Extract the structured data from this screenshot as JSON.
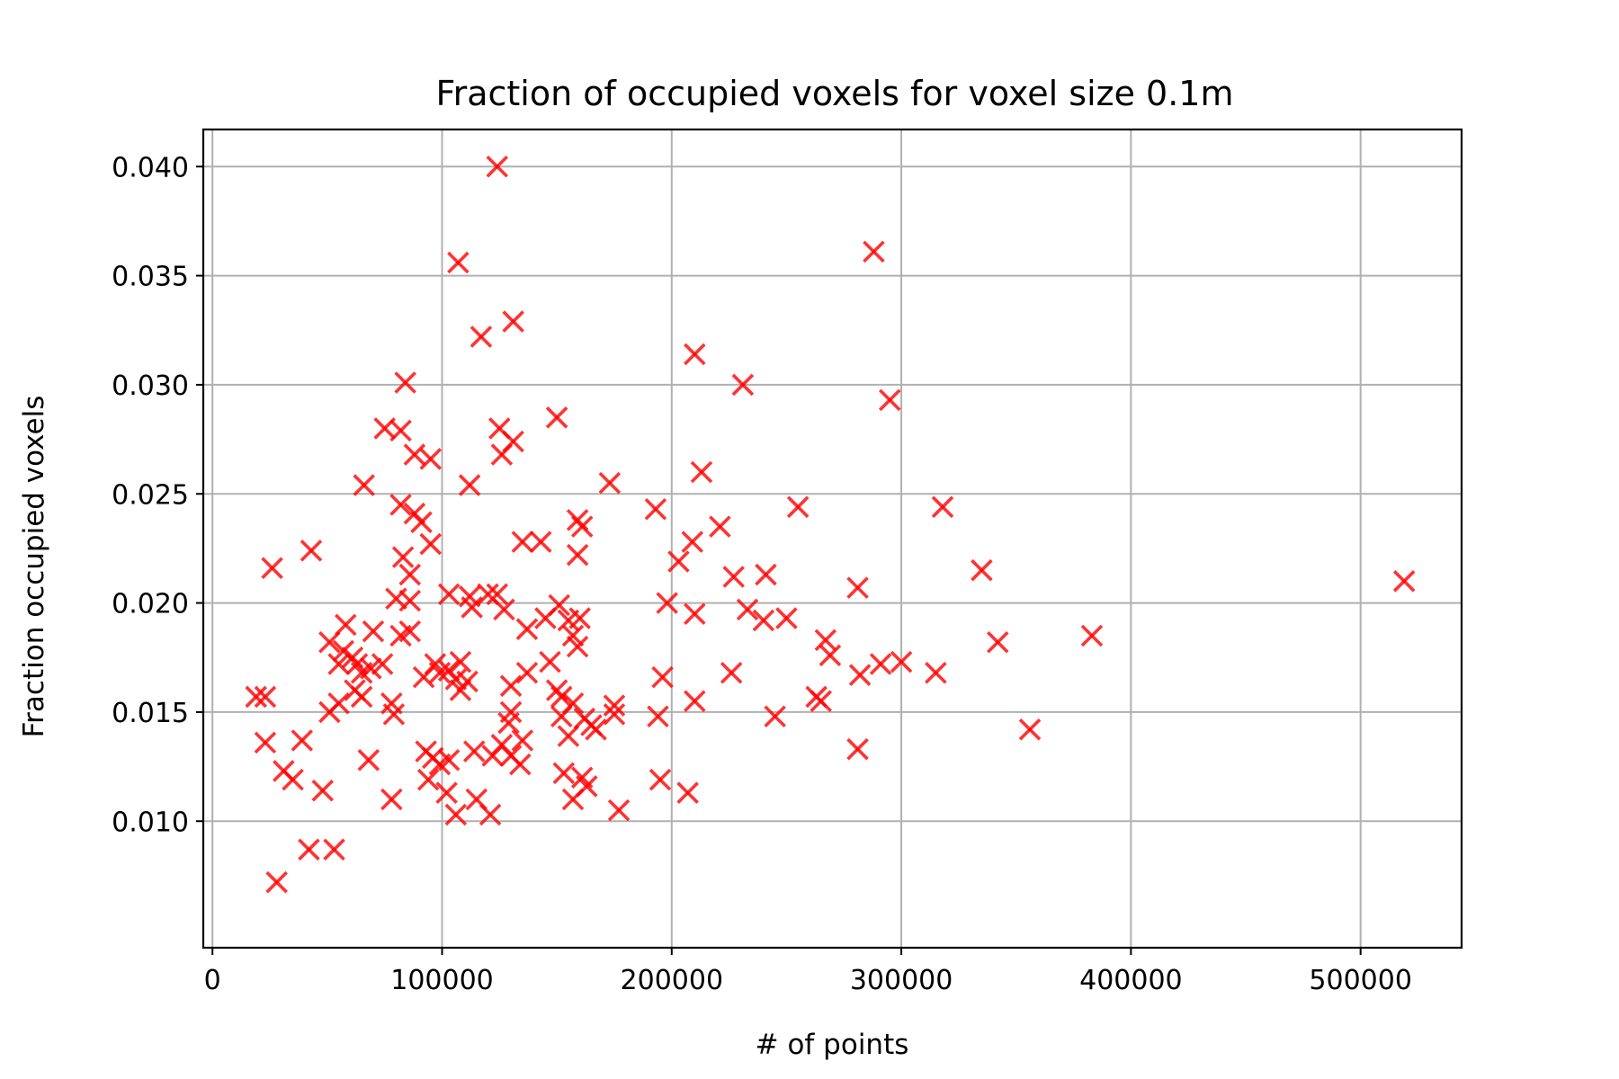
{
  "chart_data": {
    "type": "scatter",
    "title": "Fraction of occupied voxels for voxel size 0.1m",
    "xlabel": "# of points",
    "ylabel": "Fraction occupied voxels",
    "xlim": [
      -4000,
      544000
    ],
    "ylim": [
      0.0042,
      0.0417
    ],
    "xticks": [
      0,
      100000,
      200000,
      300000,
      400000,
      500000
    ],
    "xtick_labels": [
      "0",
      "100000",
      "200000",
      "300000",
      "400000",
      "500000"
    ],
    "yticks": [
      0.01,
      0.015,
      0.02,
      0.025,
      0.03,
      0.035,
      0.04
    ],
    "ytick_labels": [
      "0.010",
      "0.015",
      "0.020",
      "0.025",
      "0.030",
      "0.035",
      "0.040"
    ],
    "grid": true,
    "marker": "x",
    "color": "#ff0000",
    "marker_alpha": 0.8,
    "points": [
      [
        124000,
        0.04
      ],
      [
        107000,
        0.0356
      ],
      [
        288000,
        0.0361
      ],
      [
        131000,
        0.0329
      ],
      [
        117000,
        0.0322
      ],
      [
        210000,
        0.0314
      ],
      [
        84000,
        0.0301
      ],
      [
        231000,
        0.03
      ],
      [
        295000,
        0.0293
      ],
      [
        150000,
        0.0285
      ],
      [
        75000,
        0.028
      ],
      [
        82000,
        0.0279
      ],
      [
        125000,
        0.028
      ],
      [
        131000,
        0.0274
      ],
      [
        126000,
        0.0268
      ],
      [
        88000,
        0.0268
      ],
      [
        95000,
        0.0266
      ],
      [
        213000,
        0.026
      ],
      [
        66000,
        0.0254
      ],
      [
        112000,
        0.0254
      ],
      [
        173000,
        0.0255
      ],
      [
        82000,
        0.0245
      ],
      [
        88000,
        0.0241
      ],
      [
        91000,
        0.0237
      ],
      [
        193000,
        0.0243
      ],
      [
        255000,
        0.0244
      ],
      [
        318000,
        0.0244
      ],
      [
        159000,
        0.0238
      ],
      [
        161000,
        0.0235
      ],
      [
        221000,
        0.0235
      ],
      [
        43000,
        0.0224
      ],
      [
        26000,
        0.0216
      ],
      [
        95000,
        0.0227
      ],
      [
        135000,
        0.0228
      ],
      [
        143000,
        0.0228
      ],
      [
        159000,
        0.0222
      ],
      [
        209000,
        0.0228
      ],
      [
        83000,
        0.0221
      ],
      [
        203000,
        0.0219
      ],
      [
        86000,
        0.0213
      ],
      [
        227000,
        0.0212
      ],
      [
        241000,
        0.0213
      ],
      [
        335000,
        0.0215
      ],
      [
        519000,
        0.021
      ],
      [
        281000,
        0.0207
      ],
      [
        80000,
        0.0202
      ],
      [
        86000,
        0.0201
      ],
      [
        103000,
        0.0204
      ],
      [
        112000,
        0.0203
      ],
      [
        120000,
        0.0204
      ],
      [
        124000,
        0.0204
      ],
      [
        198000,
        0.02
      ],
      [
        113000,
        0.0198
      ],
      [
        127000,
        0.0197
      ],
      [
        151000,
        0.0199
      ],
      [
        233000,
        0.0197
      ],
      [
        145000,
        0.0193
      ],
      [
        155000,
        0.0192
      ],
      [
        160000,
        0.0193
      ],
      [
        240000,
        0.0192
      ],
      [
        250000,
        0.0193
      ],
      [
        210000,
        0.0195
      ],
      [
        58000,
        0.019
      ],
      [
        70000,
        0.0187
      ],
      [
        86000,
        0.0187
      ],
      [
        82000,
        0.0185
      ],
      [
        137000,
        0.0188
      ],
      [
        157000,
        0.0185
      ],
      [
        159000,
        0.018
      ],
      [
        267000,
        0.0183
      ],
      [
        342000,
        0.0182
      ],
      [
        383000,
        0.0185
      ],
      [
        51000,
        0.0182
      ],
      [
        57000,
        0.0178
      ],
      [
        55000,
        0.0172
      ],
      [
        61000,
        0.0175
      ],
      [
        63000,
        0.0172
      ],
      [
        65000,
        0.0168
      ],
      [
        69000,
        0.017
      ],
      [
        74000,
        0.0172
      ],
      [
        92000,
        0.0166
      ],
      [
        97000,
        0.0172
      ],
      [
        99000,
        0.0168
      ],
      [
        103000,
        0.0169
      ],
      [
        108000,
        0.0173
      ],
      [
        106000,
        0.0165
      ],
      [
        111000,
        0.0164
      ],
      [
        137000,
        0.0168
      ],
      [
        147000,
        0.0173
      ],
      [
        196000,
        0.0166
      ],
      [
        226000,
        0.0168
      ],
      [
        269000,
        0.0176
      ],
      [
        282000,
        0.0167
      ],
      [
        291000,
        0.0172
      ],
      [
        300000,
        0.0173
      ],
      [
        315000,
        0.0168
      ],
      [
        62000,
        0.016
      ],
      [
        108000,
        0.016
      ],
      [
        130000,
        0.0162
      ],
      [
        150000,
        0.016
      ],
      [
        152000,
        0.0157
      ],
      [
        55000,
        0.0154
      ],
      [
        65000,
        0.0157
      ],
      [
        78000,
        0.0154
      ],
      [
        19000,
        0.0157
      ],
      [
        23000,
        0.0157
      ],
      [
        263000,
        0.0157
      ],
      [
        265000,
        0.0155
      ],
      [
        157000,
        0.0154
      ],
      [
        210000,
        0.0155
      ],
      [
        175000,
        0.0153
      ],
      [
        51000,
        0.015
      ],
      [
        79000,
        0.0149
      ],
      [
        130000,
        0.015
      ],
      [
        152000,
        0.0148
      ],
      [
        162000,
        0.0147
      ],
      [
        165000,
        0.0144
      ],
      [
        167000,
        0.0142
      ],
      [
        175000,
        0.0149
      ],
      [
        194000,
        0.0148
      ],
      [
        245000,
        0.0148
      ],
      [
        23000,
        0.0136
      ],
      [
        39000,
        0.0137
      ],
      [
        129000,
        0.0145
      ],
      [
        155000,
        0.0139
      ],
      [
        93000,
        0.0132
      ],
      [
        103000,
        0.0128
      ],
      [
        114000,
        0.0132
      ],
      [
        126000,
        0.0135
      ],
      [
        135000,
        0.0137
      ],
      [
        130000,
        0.013
      ],
      [
        96000,
        0.0129
      ],
      [
        99000,
        0.0126
      ],
      [
        122000,
        0.013
      ],
      [
        134000,
        0.0126
      ],
      [
        68000,
        0.0128
      ],
      [
        281000,
        0.0133
      ],
      [
        356000,
        0.0142
      ],
      [
        31000,
        0.0123
      ],
      [
        35000,
        0.0119
      ],
      [
        94000,
        0.0119
      ],
      [
        102000,
        0.0113
      ],
      [
        153000,
        0.0122
      ],
      [
        161000,
        0.012
      ],
      [
        163000,
        0.0116
      ],
      [
        195000,
        0.0119
      ],
      [
        48000,
        0.0114
      ],
      [
        78000,
        0.011
      ],
      [
        115000,
        0.011
      ],
      [
        157000,
        0.011
      ],
      [
        207000,
        0.0113
      ],
      [
        106000,
        0.0103
      ],
      [
        121000,
        0.0103
      ],
      [
        177000,
        0.0105
      ],
      [
        42000,
        0.0087
      ],
      [
        53000,
        0.0087
      ],
      [
        28000,
        0.0072
      ]
    ]
  }
}
